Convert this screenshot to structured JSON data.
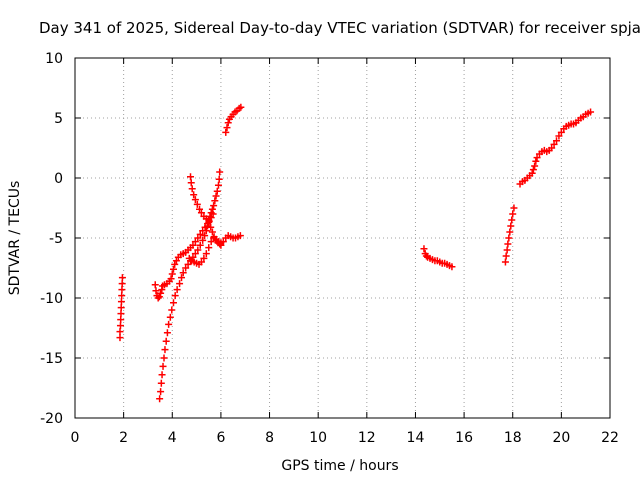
{
  "chart_data": {
    "type": "scatter",
    "title": "Day 341 of 2025, Sidereal Day-to-day VTEC variation (SDTVAR) for receiver spja",
    "xlabel": "GPS time / hours",
    "ylabel": "SDTVAR / TECUs",
    "xlim": [
      0,
      22
    ],
    "ylim": [
      -20,
      10
    ],
    "xticks": [
      0,
      2,
      4,
      6,
      8,
      10,
      12,
      14,
      16,
      18,
      20,
      22
    ],
    "yticks": [
      -20,
      -15,
      -10,
      -5,
      0,
      5,
      10
    ],
    "grid": true,
    "marker": "+",
    "color": "#ff0000",
    "series": [
      {
        "name": "arc1",
        "points": [
          [
            1.85,
            -13.3
          ],
          [
            1.85,
            -12.8
          ],
          [
            1.87,
            -12.3
          ],
          [
            1.88,
            -11.8
          ],
          [
            1.89,
            -11.3
          ],
          [
            1.9,
            -10.8
          ],
          [
            1.91,
            -10.3
          ],
          [
            1.92,
            -9.8
          ],
          [
            1.93,
            -9.3
          ],
          [
            1.94,
            -8.8
          ],
          [
            1.95,
            -8.3
          ]
        ]
      },
      {
        "name": "arc2",
        "points": [
          [
            3.3,
            -8.9
          ],
          [
            3.33,
            -9.4
          ],
          [
            3.37,
            -9.8
          ],
          [
            3.42,
            -10.0
          ],
          [
            3.47,
            -9.9
          ],
          [
            3.52,
            -9.6
          ],
          [
            3.57,
            -9.3
          ],
          [
            3.6,
            -9.0
          ],
          [
            3.68,
            -8.9
          ],
          [
            3.78,
            -8.8
          ],
          [
            3.88,
            -8.6
          ],
          [
            3.95,
            -8.4
          ],
          [
            4.0,
            -8.0
          ],
          [
            4.05,
            -7.6
          ],
          [
            4.1,
            -7.2
          ],
          [
            4.17,
            -6.9
          ],
          [
            4.25,
            -6.6
          ],
          [
            4.35,
            -6.4
          ],
          [
            4.45,
            -6.3
          ],
          [
            4.55,
            -6.2
          ],
          [
            4.65,
            -6.0
          ],
          [
            4.75,
            -5.8
          ],
          [
            4.85,
            -5.6
          ],
          [
            4.95,
            -5.3
          ],
          [
            5.05,
            -5.0
          ],
          [
            5.15,
            -4.7
          ],
          [
            5.25,
            -4.4
          ],
          [
            5.35,
            -4.1
          ],
          [
            5.45,
            -3.8
          ],
          [
            5.5,
            -3.5
          ],
          [
            5.55,
            -3.2
          ],
          [
            5.6,
            -2.9
          ],
          [
            5.65,
            -2.6
          ],
          [
            5.7,
            -2.3
          ],
          [
            5.75,
            -1.9
          ],
          [
            5.8,
            -1.5
          ],
          [
            5.85,
            -1.1
          ],
          [
            5.9,
            -0.6
          ],
          [
            5.93,
            -0.1
          ],
          [
            5.95,
            0.5
          ]
        ]
      },
      {
        "name": "arc3",
        "points": [
          [
            3.48,
            -18.4
          ],
          [
            3.52,
            -17.8
          ],
          [
            3.55,
            -17.1
          ],
          [
            3.58,
            -16.4
          ],
          [
            3.62,
            -15.7
          ],
          [
            3.66,
            -15.0
          ],
          [
            3.7,
            -14.3
          ],
          [
            3.75,
            -13.6
          ],
          [
            3.8,
            -12.9
          ],
          [
            3.85,
            -12.2
          ],
          [
            3.92,
            -11.6
          ],
          [
            3.98,
            -11.0
          ],
          [
            4.05,
            -10.4
          ],
          [
            4.12,
            -9.8
          ],
          [
            4.2,
            -9.3
          ],
          [
            4.3,
            -8.8
          ],
          [
            4.38,
            -8.3
          ],
          [
            4.45,
            -7.9
          ],
          [
            4.55,
            -7.5
          ],
          [
            4.65,
            -7.2
          ],
          [
            4.75,
            -6.9
          ],
          [
            4.85,
            -6.6
          ],
          [
            4.95,
            -6.3
          ],
          [
            5.05,
            -6.0
          ],
          [
            5.15,
            -5.6
          ],
          [
            5.25,
            -5.2
          ],
          [
            5.33,
            -4.8
          ],
          [
            5.4,
            -4.4
          ],
          [
            5.45,
            -4.0
          ],
          [
            5.52,
            -3.6
          ],
          [
            5.6,
            -3.3
          ],
          [
            5.68,
            -3.0
          ]
        ]
      },
      {
        "name": "arc4",
        "points": [
          [
            4.75,
            0.1
          ],
          [
            4.78,
            -0.4
          ],
          [
            4.82,
            -0.9
          ],
          [
            4.88,
            -1.4
          ],
          [
            4.95,
            -1.8
          ],
          [
            5.03,
            -2.2
          ],
          [
            5.12,
            -2.6
          ],
          [
            5.2,
            -2.9
          ],
          [
            5.3,
            -3.2
          ],
          [
            5.4,
            -3.4
          ],
          [
            5.5,
            -3.7
          ],
          [
            5.58,
            -4.1
          ],
          [
            5.65,
            -4.5
          ],
          [
            5.72,
            -4.9
          ],
          [
            5.8,
            -5.2
          ],
          [
            5.88,
            -5.4
          ],
          [
            5.95,
            -5.5
          ],
          [
            6.0,
            -5.6
          ]
        ]
      },
      {
        "name": "arc5",
        "points": [
          [
            4.7,
            -6.7
          ],
          [
            4.8,
            -6.9
          ],
          [
            4.9,
            -7.0
          ],
          [
            5.0,
            -7.1
          ],
          [
            5.1,
            -7.2
          ],
          [
            5.2,
            -7.0
          ],
          [
            5.3,
            -6.7
          ],
          [
            5.4,
            -6.3
          ],
          [
            5.5,
            -5.8
          ],
          [
            5.6,
            -5.3
          ],
          [
            5.7,
            -5.0
          ],
          [
            5.8,
            -5.1
          ],
          [
            5.9,
            -5.3
          ],
          [
            6.0,
            -5.4
          ],
          [
            6.1,
            -5.3
          ],
          [
            6.2,
            -5.0
          ],
          [
            6.3,
            -4.8
          ],
          [
            6.4,
            -4.9
          ],
          [
            6.5,
            -5.0
          ],
          [
            6.6,
            -5.0
          ],
          [
            6.7,
            -4.9
          ],
          [
            6.8,
            -4.8
          ]
        ]
      },
      {
        "name": "arc6",
        "points": [
          [
            6.2,
            3.8
          ],
          [
            6.25,
            4.2
          ],
          [
            6.3,
            4.6
          ],
          [
            6.35,
            4.9
          ],
          [
            6.42,
            5.1
          ],
          [
            6.5,
            5.3
          ],
          [
            6.58,
            5.5
          ],
          [
            6.66,
            5.6
          ],
          [
            6.75,
            5.8
          ],
          [
            6.82,
            5.9
          ]
        ]
      },
      {
        "name": "arc7",
        "points": [
          [
            14.35,
            -5.9
          ],
          [
            14.4,
            -6.3
          ],
          [
            14.45,
            -6.5
          ],
          [
            14.5,
            -6.6
          ],
          [
            14.6,
            -6.7
          ],
          [
            14.7,
            -6.8
          ],
          [
            14.8,
            -6.9
          ],
          [
            14.9,
            -6.9
          ],
          [
            15.0,
            -7.0
          ],
          [
            15.1,
            -7.1
          ],
          [
            15.2,
            -7.1
          ],
          [
            15.3,
            -7.2
          ],
          [
            15.4,
            -7.3
          ],
          [
            15.5,
            -7.4
          ]
        ]
      },
      {
        "name": "arc8",
        "points": [
          [
            17.7,
            -7.0
          ],
          [
            17.73,
            -6.5
          ],
          [
            17.77,
            -6.0
          ],
          [
            17.8,
            -5.5
          ],
          [
            17.84,
            -5.0
          ],
          [
            17.88,
            -4.5
          ],
          [
            17.92,
            -4.0
          ],
          [
            17.96,
            -3.5
          ],
          [
            18.0,
            -3.0
          ],
          [
            18.05,
            -2.5
          ]
        ]
      },
      {
        "name": "arc9",
        "points": [
          [
            18.3,
            -0.5
          ],
          [
            18.4,
            -0.3
          ],
          [
            18.5,
            -0.2
          ],
          [
            18.6,
            0.0
          ],
          [
            18.7,
            0.2
          ],
          [
            18.8,
            0.4
          ],
          [
            18.85,
            0.7
          ],
          [
            18.9,
            1.0
          ],
          [
            18.95,
            1.4
          ],
          [
            19.0,
            1.7
          ],
          [
            19.1,
            2.0
          ],
          [
            19.2,
            2.2
          ],
          [
            19.3,
            2.3
          ],
          [
            19.4,
            2.2
          ],
          [
            19.5,
            2.3
          ],
          [
            19.6,
            2.5
          ],
          [
            19.7,
            2.8
          ],
          [
            19.8,
            3.1
          ],
          [
            19.9,
            3.5
          ],
          [
            20.0,
            3.8
          ],
          [
            20.1,
            4.1
          ],
          [
            20.2,
            4.3
          ],
          [
            20.3,
            4.4
          ],
          [
            20.4,
            4.5
          ],
          [
            20.5,
            4.5
          ],
          [
            20.6,
            4.6
          ],
          [
            20.7,
            4.8
          ],
          [
            20.8,
            5.0
          ],
          [
            20.9,
            5.1
          ],
          [
            21.0,
            5.3
          ],
          [
            21.1,
            5.4
          ],
          [
            21.2,
            5.5
          ]
        ]
      }
    ]
  }
}
